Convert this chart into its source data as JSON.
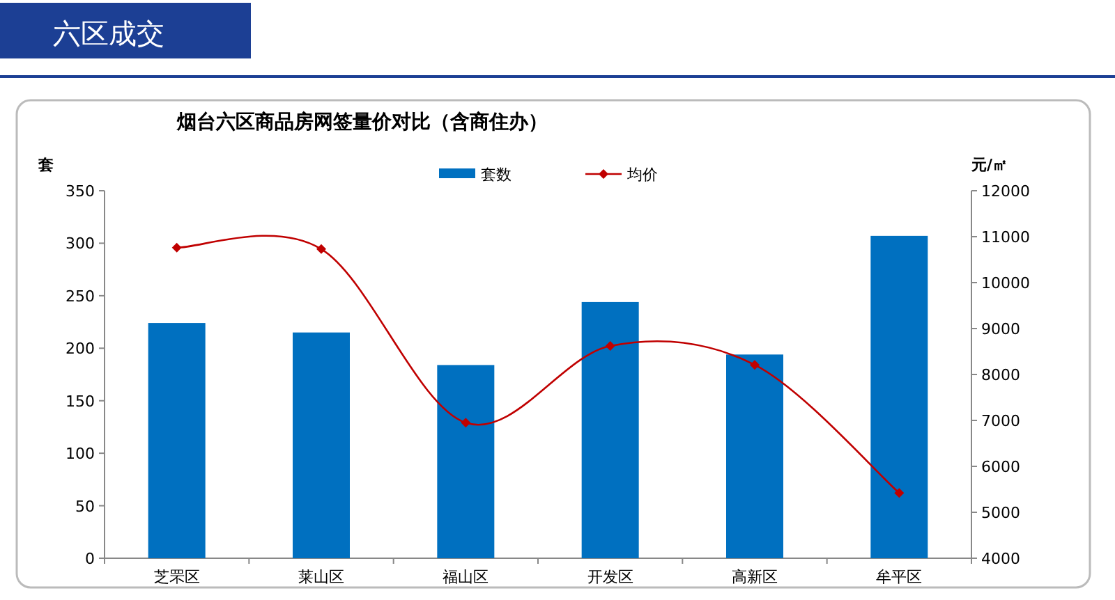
{
  "chart_data": {
    "type": "bar",
    "title": "烟台六区商品房网签量价对比（含商住办）",
    "annotations": [
      "六区成交"
    ],
    "ylabel": "套",
    "y2label": "元/㎡",
    "categories": [
      "芝罘区",
      "莱山区",
      "福山区",
      "开发区",
      "高新区",
      "牟平区"
    ],
    "series": [
      {
        "name": "套数",
        "color": "#0070c0",
        "values": [
          224,
          215,
          184,
          244,
          194,
          307
        ]
      },
      {
        "name": "均价",
        "type": "line",
        "axis": "y2",
        "color": "#c00000",
        "values": [
          10760,
          10730,
          6950,
          8620,
          8210,
          5420
        ]
      }
    ],
    "ylim": [
      0,
      350
    ],
    "yticks": [
      0,
      50,
      100,
      150,
      200,
      250,
      300,
      350
    ],
    "y2lim": [
      4000,
      12000
    ],
    "y2ticks": [
      4000,
      5000,
      6000,
      7000,
      8000,
      9000,
      10000,
      11000,
      12000
    ],
    "legend": "top",
    "marker": "diamond"
  }
}
